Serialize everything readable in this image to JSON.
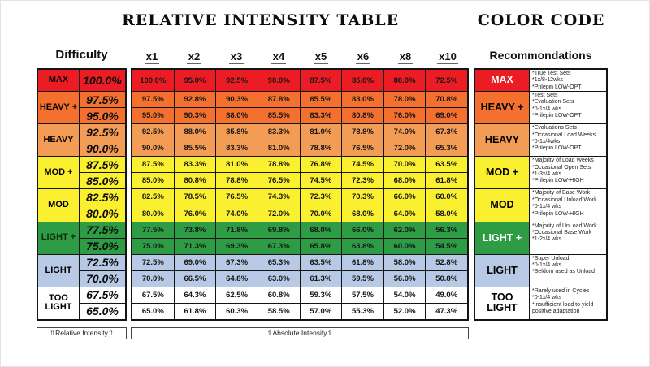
{
  "title": "RELATIVE INTENSITY TABLE",
  "color_code": {
    "title": "COLOR CODE"
  },
  "headers": {
    "difficulty": "Difficulty",
    "multipliers": [
      "x1",
      "x2",
      "x3",
      "x4",
      "x5",
      "x6",
      "x8",
      "x10"
    ],
    "recommendations": "Recommondations"
  },
  "footer": {
    "relative_label": "⇧Relative Intensity⇧",
    "absolute_label": "⇧Absolute Intensity⇧"
  },
  "chart_data": {
    "type": "table",
    "columns": [
      "Difficulty",
      "Relative Intensity",
      "x1",
      "x2",
      "x3",
      "x4",
      "x5",
      "x6",
      "x8",
      "x10",
      "Recommondations"
    ],
    "groups": [
      {
        "label": "MAX",
        "color": "#EC1C24",
        "label_text_color": "#000000",
        "cc_label_text_color": "#FFFFFF",
        "rows": [
          {
            "ri": "100.0%",
            "values": [
              "100.0%",
              "95.0%",
              "92.5%",
              "90.0%",
              "87.5%",
              "85.0%",
              "80.0%",
              "72.5%"
            ]
          }
        ],
        "recommendations": [
          "*True Test Sets",
          "*1x/8-12wks",
          "*Prilepin LOW-OPT"
        ]
      },
      {
        "label": "HEAVY +",
        "color": "#F3702E",
        "label_text_color": "#000000",
        "cc_label_text_color": "#000000",
        "rows": [
          {
            "ri": "97.5%",
            "values": [
              "97.5%",
              "92.8%",
              "90.3%",
              "87.8%",
              "85.5%",
              "83.0%",
              "78.0%",
              "70.8%"
            ]
          },
          {
            "ri": "95.0%",
            "values": [
              "95.0%",
              "90.3%",
              "88.0%",
              "85.5%",
              "83.3%",
              "80.8%",
              "76.0%",
              "69.0%"
            ]
          }
        ],
        "recommendations": [
          "*Test Sets",
          "*Evaluation Sets",
          "*0-1x/4 wks",
          "*Prilepin LOW-OPT"
        ]
      },
      {
        "label": "HEAVY",
        "color": "#F29C56",
        "label_text_color": "#000000",
        "cc_label_text_color": "#000000",
        "rows": [
          {
            "ri": "92.5%",
            "values": [
              "92.5%",
              "88.0%",
              "85.8%",
              "83.3%",
              "81.0%",
              "78.8%",
              "74.0%",
              "67.3%"
            ]
          },
          {
            "ri": "90.0%",
            "values": [
              "90.0%",
              "85.5%",
              "83.3%",
              "81.0%",
              "78.8%",
              "76.5%",
              "72.0%",
              "65.3%"
            ]
          }
        ],
        "recommendations": [
          "*Evaluations Sets",
          "*Occasional Load Weeks",
          "*0-1x/4wks",
          "*Prilepin LOW-OPT"
        ]
      },
      {
        "label": "MOD +",
        "color": "#FAF030",
        "label_text_color": "#000000",
        "cc_label_text_color": "#000000",
        "rows": [
          {
            "ri": "87.5%",
            "values": [
              "87.5%",
              "83.3%",
              "81.0%",
              "78.8%",
              "76.8%",
              "74.5%",
              "70.0%",
              "63.5%"
            ]
          },
          {
            "ri": "85.0%",
            "values": [
              "85.0%",
              "80.8%",
              "78.8%",
              "76.5%",
              "74.5%",
              "72.3%",
              "68.0%",
              "61.8%"
            ]
          }
        ],
        "recommendations": [
          "*Majority of Load Weeks",
          "*Occasional Open Sets",
          "*1-3x/4 wks",
          "*Prilepin LOW-HIGH"
        ]
      },
      {
        "label": "MOD",
        "color": "#FAF030",
        "label_text_color": "#000000",
        "cc_label_text_color": "#000000",
        "rows": [
          {
            "ri": "82.5%",
            "values": [
              "82.5%",
              "78.5%",
              "76.5%",
              "74.3%",
              "72.3%",
              "70.3%",
              "66.0%",
              "60.0%"
            ]
          },
          {
            "ri": "80.0%",
            "values": [
              "80.0%",
              "76.0%",
              "74.0%",
              "72.0%",
              "70.0%",
              "68.0%",
              "64.0%",
              "58.0%"
            ]
          }
        ],
        "recommendations": [
          "*Majority of Base Work",
          "*Occasional Unload Work",
          "*0-1x/4 wks",
          "*Prilepin LOW-HIGH"
        ]
      },
      {
        "label": "LIGHT +",
        "color": "#2E9B45",
        "label_text_color": "#0b2e0b",
        "cc_label_text_color": "#FFFFFF",
        "rows": [
          {
            "ri": "77.5%",
            "values": [
              "77.5%",
              "73.8%",
              "71.8%",
              "69.8%",
              "68.0%",
              "66.0%",
              "62.0%",
              "56.3%"
            ]
          },
          {
            "ri": "75.0%",
            "values": [
              "75.0%",
              "71.3%",
              "69.3%",
              "67.3%",
              "65.8%",
              "63.8%",
              "60.0%",
              "54.5%"
            ]
          }
        ],
        "recommendations": [
          "*Majority of UnLoad Work",
          "*Occasional Base Work",
          "*1-2x/4 wks"
        ]
      },
      {
        "label": "LIGHT",
        "color": "#B7C9E5",
        "label_text_color": "#000000",
        "cc_label_text_color": "#000000",
        "rows": [
          {
            "ri": "72.5%",
            "values": [
              "72.5%",
              "69.0%",
              "67.3%",
              "65.3%",
              "63.5%",
              "61.8%",
              "58.0%",
              "52.8%"
            ]
          },
          {
            "ri": "70.0%",
            "values": [
              "70.0%",
              "66.5%",
              "64.8%",
              "63.0%",
              "61.3%",
              "59.5%",
              "56.0%",
              "50.8%"
            ]
          }
        ],
        "recommendations": [
          "*Super Unload",
          "*0-1x/4 wks",
          "*Seldom used as Unload"
        ]
      },
      {
        "label": "TOO LIGHT",
        "color": "#FFFFFF",
        "label_text_color": "#000000",
        "cc_label_text_color": "#000000",
        "rows": [
          {
            "ri": "67.5%",
            "values": [
              "67.5%",
              "64.3%",
              "62.5%",
              "60.8%",
              "59.3%",
              "57.5%",
              "54.0%",
              "49.0%"
            ]
          },
          {
            "ri": "65.0%",
            "values": [
              "65.0%",
              "61.8%",
              "60.3%",
              "58.5%",
              "57.0%",
              "55.3%",
              "52.0%",
              "47.3%"
            ]
          }
        ],
        "recommendations": [
          "*Rarely used in Cycles",
          "*0-1x/4 wks",
          "*Insufficient load to yield positive adaptation"
        ]
      }
    ]
  }
}
